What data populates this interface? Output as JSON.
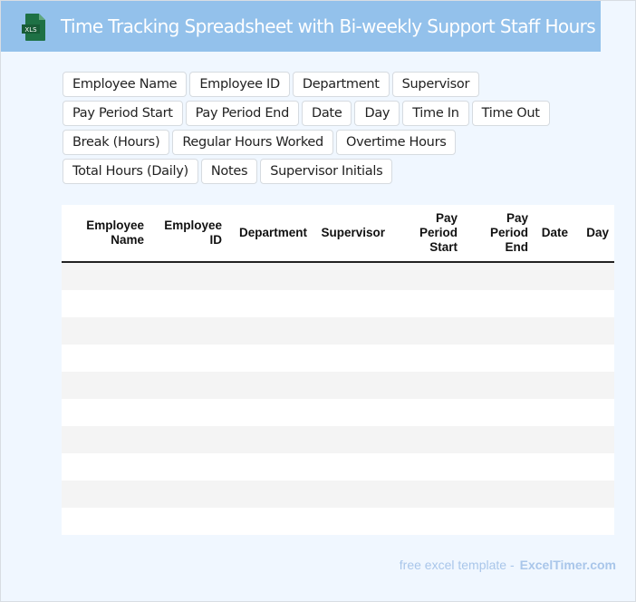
{
  "header": {
    "title": "Time Tracking Spreadsheet with Bi-weekly Support Staff Hours",
    "logo_text": "XLS",
    "logo_color": "#1e7145",
    "bg_color": "#93c1eb"
  },
  "tags": [
    "Employee Name",
    "Employee ID",
    "Department",
    "Supervisor",
    "Pay Period Start",
    "Pay Period End",
    "Date",
    "Day",
    "Time In",
    "Time Out",
    "Break (Hours)",
    "Regular Hours Worked",
    "Overtime Hours",
    "Total Hours (Daily)",
    "Notes",
    "Supervisor Initials"
  ],
  "table": {
    "columns": [
      "Employee Name",
      "Employee ID",
      "Department",
      "Supervisor",
      "Pay Period Start",
      "Pay Period End",
      "Date",
      "Day"
    ],
    "row_count": 10
  },
  "footer": {
    "text": "free excel template -",
    "brand": "ExcelTimer.com"
  }
}
